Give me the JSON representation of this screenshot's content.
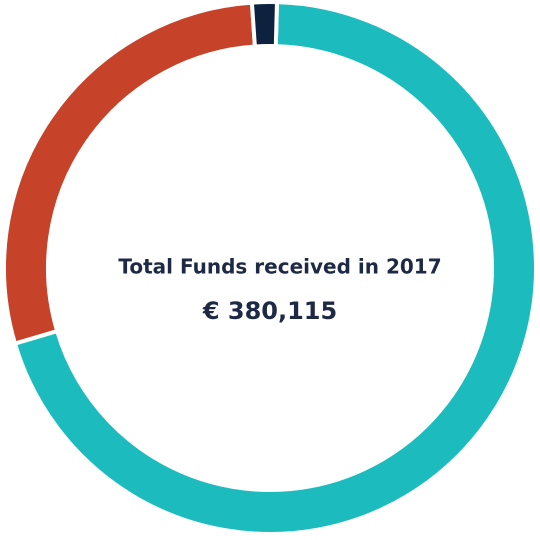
{
  "chart_data": {
    "type": "donut",
    "title": "Total Funds received in 2017",
    "subtitle": "€ 380,115",
    "values": [
      70,
      28.5,
      1.5
    ],
    "colors": [
      "#1cbcbe",
      "#c6432a",
      "#0e2240"
    ]
  }
}
